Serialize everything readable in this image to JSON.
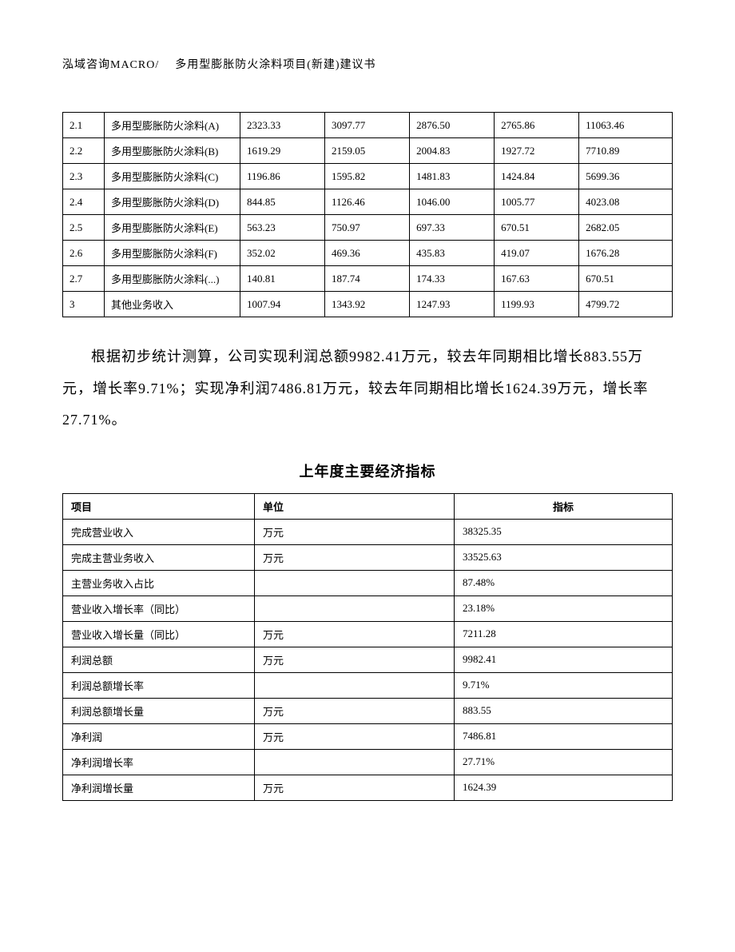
{
  "header": {
    "left": "泓域咨询MACRO/",
    "right": "多用型膨胀防火涂料项目(新建)建议书"
  },
  "table1": {
    "rows": [
      [
        "2.1",
        "多用型膨胀防火涂料(A)",
        "2323.33",
        "3097.77",
        "2876.50",
        "2765.86",
        "11063.46"
      ],
      [
        "2.2",
        "多用型膨胀防火涂料(B)",
        "1619.29",
        "2159.05",
        "2004.83",
        "1927.72",
        "7710.89"
      ],
      [
        "2.3",
        "多用型膨胀防火涂料(C)",
        "1196.86",
        "1595.82",
        "1481.83",
        "1424.84",
        "5699.36"
      ],
      [
        "2.4",
        "多用型膨胀防火涂料(D)",
        "844.85",
        "1126.46",
        "1046.00",
        "1005.77",
        "4023.08"
      ],
      [
        "2.5",
        "多用型膨胀防火涂料(E)",
        "563.23",
        "750.97",
        "697.33",
        "670.51",
        "2682.05"
      ],
      [
        "2.6",
        "多用型膨胀防火涂料(F)",
        "352.02",
        "469.36",
        "435.83",
        "419.07",
        "1676.28"
      ],
      [
        "2.7",
        "多用型膨胀防火涂料(...)",
        "140.81",
        "187.74",
        "174.33",
        "167.63",
        "670.51"
      ],
      [
        "3",
        "其他业务收入",
        "1007.94",
        "1343.92",
        "1247.93",
        "1199.93",
        "4799.72"
      ]
    ]
  },
  "paragraph": "根据初步统计测算，公司实现利润总额9982.41万元，较去年同期相比增长883.55万元，增长率9.71%；实现净利润7486.81万元，较去年同期相比增长1624.39万元，增长率27.71%。",
  "section_title": "上年度主要经济指标",
  "table2": {
    "headers": [
      "项目",
      "单位",
      "指标"
    ],
    "rows": [
      [
        "完成营业收入",
        "万元",
        "38325.35"
      ],
      [
        "完成主营业务收入",
        "万元",
        "33525.63"
      ],
      [
        "主营业务收入占比",
        "",
        "87.48%"
      ],
      [
        "营业收入增长率（同比）",
        "",
        "23.18%"
      ],
      [
        "营业收入增长量（同比）",
        "万元",
        "7211.28"
      ],
      [
        "利润总额",
        "万元",
        "9982.41"
      ],
      [
        "利润总额增长率",
        "",
        "9.71%"
      ],
      [
        "利润总额增长量",
        "万元",
        "883.55"
      ],
      [
        "净利润",
        "万元",
        "7486.81"
      ],
      [
        "净利润增长率",
        "",
        "27.71%"
      ],
      [
        "净利润增长量",
        "万元",
        "1624.39"
      ]
    ]
  }
}
